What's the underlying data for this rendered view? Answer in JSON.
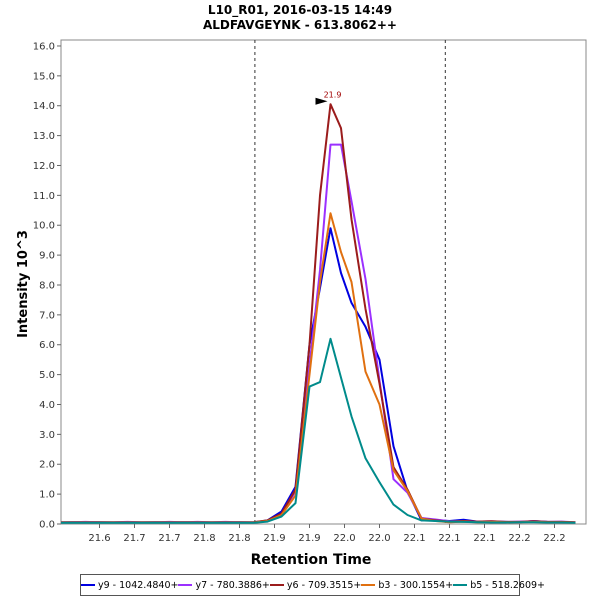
{
  "chart_data": {
    "type": "line",
    "title": "L10_R01, 2016-03-15 14:49",
    "subtitle": "ALDFAVGEYNK - 613.8062++",
    "xlabel": "Retention Time",
    "ylabel": "Intensity 10^3",
    "xlim": [
      21.545,
      22.295
    ],
    "ylim": [
      0.0,
      16.2
    ],
    "x_ticks": [
      "21.6",
      "21.7",
      "21.7",
      "21.8",
      "21.8",
      "21.9",
      "21.9",
      "22.0",
      "22.0",
      "22.1",
      "22.1",
      "22.1",
      "22.2",
      "22.2",
      "22.2"
    ],
    "x_tick_values": [
      21.6,
      21.65,
      21.7,
      21.75,
      21.8,
      21.85,
      21.9,
      21.95,
      22.0,
      22.05,
      22.1,
      22.15,
      22.2,
      22.25,
      22.3
    ],
    "y_ticks": [
      "0.0",
      "1.0",
      "2.0",
      "3.0",
      "4.0",
      "5.0",
      "6.0",
      "7.0",
      "8.0",
      "9.0",
      "10.0",
      "11.0",
      "12.0",
      "13.0",
      "14.0",
      "15.0",
      "16.0"
    ],
    "y_tick_values": [
      0,
      1,
      2,
      3,
      4,
      5,
      6,
      7,
      8,
      9,
      10,
      11,
      12,
      13,
      14,
      15,
      16
    ],
    "grid": false,
    "legend_position": "bottom",
    "vlines": [
      21.822,
      22.094
    ],
    "annotation": {
      "text": "21.9",
      "x": 21.93,
      "y": 14.1,
      "color": "#a00000"
    },
    "x": [
      21.545,
      21.56,
      21.58,
      21.6,
      21.62,
      21.64,
      21.66,
      21.68,
      21.7,
      21.72,
      21.74,
      21.76,
      21.78,
      21.8,
      21.82,
      21.84,
      21.86,
      21.88,
      21.9,
      21.915,
      21.93,
      21.945,
      21.96,
      21.98,
      22.0,
      22.02,
      22.04,
      22.06,
      22.08,
      22.1,
      22.12,
      22.14,
      22.16,
      22.18,
      22.2,
      22.22,
      22.24,
      22.26,
      22.28
    ],
    "series": [
      {
        "name": "y9 - 1042.4840+",
        "color": "#0000e0",
        "values": [
          0.05,
          0.06,
          0.06,
          0.06,
          0.05,
          0.06,
          0.05,
          0.06,
          0.05,
          0.06,
          0.05,
          0.05,
          0.05,
          0.06,
          0.05,
          0.12,
          0.42,
          1.25,
          6.0,
          7.9,
          9.9,
          8.4,
          7.4,
          6.6,
          5.5,
          2.6,
          1.1,
          0.12,
          0.13,
          0.1,
          0.14,
          0.08,
          0.08,
          0.07,
          0.06,
          0.1,
          0.07,
          0.06,
          0.05
        ]
      },
      {
        "name": "y7 - 780.3886+",
        "color": "#9b30ff",
        "values": [
          0.06,
          0.06,
          0.07,
          0.06,
          0.06,
          0.07,
          0.06,
          0.06,
          0.07,
          0.06,
          0.07,
          0.06,
          0.07,
          0.06,
          0.06,
          0.1,
          0.3,
          1.1,
          5.3,
          8.5,
          12.7,
          12.7,
          10.8,
          8.2,
          4.8,
          1.5,
          1.05,
          0.2,
          0.15,
          0.09,
          0.1,
          0.08,
          0.09,
          0.07,
          0.08,
          0.09,
          0.07,
          0.08,
          0.06
        ]
      },
      {
        "name": "y6 - 709.3515+",
        "color": "#9b1c1c",
        "values": [
          0.06,
          0.06,
          0.06,
          0.06,
          0.06,
          0.06,
          0.06,
          0.06,
          0.06,
          0.06,
          0.06,
          0.06,
          0.06,
          0.06,
          0.06,
          0.12,
          0.35,
          1.15,
          6.0,
          11.0,
          14.05,
          13.25,
          10.2,
          7.2,
          4.7,
          1.9,
          1.15,
          0.18,
          0.12,
          0.08,
          0.1,
          0.08,
          0.09,
          0.07,
          0.07,
          0.09,
          0.07,
          0.07,
          0.06
        ]
      },
      {
        "name": "b3 - 300.1554+",
        "color": "#e07010",
        "values": [
          0.05,
          0.05,
          0.05,
          0.05,
          0.05,
          0.05,
          0.05,
          0.05,
          0.05,
          0.05,
          0.05,
          0.05,
          0.05,
          0.05,
          0.05,
          0.1,
          0.3,
          0.95,
          5.0,
          8.1,
          10.4,
          9.1,
          8.1,
          5.1,
          4.0,
          1.8,
          1.1,
          0.18,
          0.1,
          0.06,
          0.08,
          0.06,
          0.07,
          0.06,
          0.06,
          0.07,
          0.06,
          0.06,
          0.05
        ]
      },
      {
        "name": "b5 - 518.2609+",
        "color": "#008b8b",
        "values": [
          0.04,
          0.04,
          0.04,
          0.04,
          0.04,
          0.04,
          0.04,
          0.04,
          0.04,
          0.04,
          0.04,
          0.04,
          0.04,
          0.04,
          0.04,
          0.08,
          0.25,
          0.7,
          4.6,
          4.75,
          6.2,
          4.9,
          3.6,
          2.2,
          1.4,
          0.65,
          0.3,
          0.12,
          0.1,
          0.08,
          0.07,
          0.06,
          0.05,
          0.05,
          0.06,
          0.06,
          0.05,
          0.05,
          0.04
        ]
      }
    ]
  }
}
